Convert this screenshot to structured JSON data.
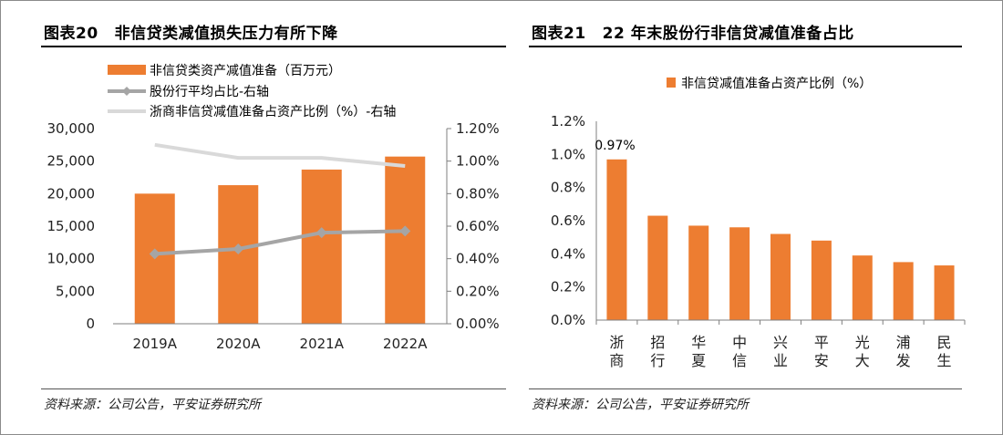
{
  "colors": {
    "bar": "#ed7d31",
    "line_avg": "#a5a5a5",
    "line_zheshang": "#d9d9d9",
    "axis": "#7f7f7f"
  },
  "left_panel": {
    "title_num": "图表20",
    "title_text": "非信贷类减值损失压力有所下降",
    "source": "资料来源：公司公告，平安证券研究所"
  },
  "right_panel": {
    "title_num": "图表21",
    "title_text": "22 年末股份行非信贷减值准备占比",
    "source": "资料来源：公司公告，平安证券研究所"
  },
  "chart_data": [
    {
      "type": "bar",
      "categories": [
        "2019A",
        "2020A",
        "2021A",
        "2022A"
      ],
      "series": [
        {
          "name": "非信贷类资产减值准备（百万元）",
          "type": "bar",
          "axis": "left",
          "values": [
            20000,
            21300,
            23700,
            25700
          ]
        },
        {
          "name": "股份行平均占比-右轴",
          "type": "line",
          "axis": "right",
          "marker": "diamond",
          "values": [
            0.43,
            0.46,
            0.56,
            0.57
          ]
        },
        {
          "name": "浙商非信贷减值准备占资产比例（%）-右轴",
          "type": "line",
          "axis": "right",
          "values": [
            1.1,
            1.02,
            1.02,
            0.97
          ]
        }
      ],
      "ylim_left": [
        0,
        30000
      ],
      "yticks_left": [
        "30,000",
        "25,000",
        "20,000",
        "15,000",
        "10,000",
        "5,000",
        "0"
      ],
      "ylim_right": [
        0,
        1.2
      ],
      "yticks_right": [
        "1.20%",
        "1.00%",
        "0.80%",
        "0.60%",
        "0.40%",
        "0.20%",
        "0.00%"
      ],
      "legend_position": "top"
    },
    {
      "type": "bar",
      "categories": [
        "浙商",
        "招行",
        "华夏",
        "中信",
        "兴业",
        "平安",
        "光大",
        "浦发",
        "民生"
      ],
      "series": [
        {
          "name": "非信贷减值准备占资产比例（%）",
          "values": [
            0.97,
            0.63,
            0.57,
            0.56,
            0.52,
            0.48,
            0.39,
            0.35,
            0.33
          ]
        }
      ],
      "data_labels": [
        "0.97%"
      ],
      "ylim": [
        0,
        1.2
      ],
      "yticks": [
        "1.2%",
        "1.0%",
        "0.8%",
        "0.6%",
        "0.4%",
        "0.2%",
        "0.0%"
      ],
      "legend_position": "top"
    }
  ]
}
